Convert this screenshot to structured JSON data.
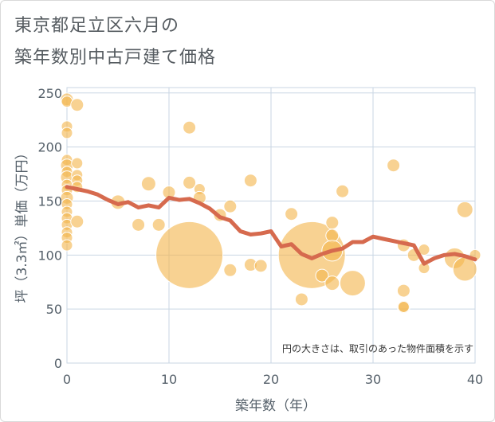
{
  "header": {
    "title_line1": "東京都足立区六月の",
    "title_line2": "築年数別中古戸建て価格"
  },
  "chart_data": {
    "type": "scatter",
    "title": "東京都足立区六月の築年数別中古戸建て価格",
    "xlabel": "築年数（年）",
    "ylabel": "坪（3.3㎡）単価（万円）",
    "xlim": [
      0,
      40
    ],
    "ylim": [
      0,
      255
    ],
    "xticks": [
      0,
      10,
      20,
      30,
      40
    ],
    "yticks": [
      0,
      50,
      100,
      150,
      200,
      250
    ],
    "note": "円の大きさは、取引のあった物件面積を示す",
    "colors": {
      "bubble": "#f3b64f",
      "trend": "#d66a4e",
      "grid": "#c9d6e3"
    },
    "bubbles": [
      {
        "x": 0,
        "y": 244,
        "s": 8
      },
      {
        "x": 0,
        "y": 242,
        "s": 7
      },
      {
        "x": 0,
        "y": 219,
        "s": 7
      },
      {
        "x": 0,
        "y": 213,
        "s": 7
      },
      {
        "x": 0,
        "y": 188,
        "s": 7
      },
      {
        "x": 0,
        "y": 183,
        "s": 8
      },
      {
        "x": 0,
        "y": 177,
        "s": 7
      },
      {
        "x": 0,
        "y": 172,
        "s": 8
      },
      {
        "x": 0,
        "y": 165,
        "s": 7
      },
      {
        "x": 0,
        "y": 160,
        "s": 7
      },
      {
        "x": 0,
        "y": 153,
        "s": 8
      },
      {
        "x": 0,
        "y": 147,
        "s": 7
      },
      {
        "x": 0,
        "y": 140,
        "s": 7
      },
      {
        "x": 0,
        "y": 134,
        "s": 7
      },
      {
        "x": 0,
        "y": 128,
        "s": 7
      },
      {
        "x": 0,
        "y": 121,
        "s": 7
      },
      {
        "x": 0,
        "y": 116,
        "s": 7
      },
      {
        "x": 0,
        "y": 109,
        "s": 7
      },
      {
        "x": 1,
        "y": 239,
        "s": 8
      },
      {
        "x": 1,
        "y": 185,
        "s": 7
      },
      {
        "x": 1,
        "y": 174,
        "s": 7
      },
      {
        "x": 1,
        "y": 169,
        "s": 7
      },
      {
        "x": 1,
        "y": 163,
        "s": 7
      },
      {
        "x": 1,
        "y": 131,
        "s": 8
      },
      {
        "x": 5,
        "y": 149,
        "s": 9
      },
      {
        "x": 7,
        "y": 128,
        "s": 8
      },
      {
        "x": 8,
        "y": 166,
        "s": 9
      },
      {
        "x": 9,
        "y": 128,
        "s": 8
      },
      {
        "x": 10,
        "y": 158,
        "s": 8
      },
      {
        "x": 12,
        "y": 218,
        "s": 8
      },
      {
        "x": 12,
        "y": 167,
        "s": 8
      },
      {
        "x": 12,
        "y": 100,
        "s": 42
      },
      {
        "x": 13,
        "y": 161,
        "s": 7
      },
      {
        "x": 13,
        "y": 153,
        "s": 8
      },
      {
        "x": 15,
        "y": 137,
        "s": 8
      },
      {
        "x": 16,
        "y": 145,
        "s": 8
      },
      {
        "x": 16,
        "y": 86,
        "s": 8
      },
      {
        "x": 18,
        "y": 169,
        "s": 8
      },
      {
        "x": 18,
        "y": 91,
        "s": 8
      },
      {
        "x": 19,
        "y": 90,
        "s": 8
      },
      {
        "x": 22,
        "y": 138,
        "s": 8
      },
      {
        "x": 23,
        "y": 59,
        "s": 8
      },
      {
        "x": 24,
        "y": 100,
        "s": 42
      },
      {
        "x": 25,
        "y": 81,
        "s": 8
      },
      {
        "x": 26,
        "y": 130,
        "s": 8
      },
      {
        "x": 26,
        "y": 118,
        "s": 8
      },
      {
        "x": 26,
        "y": 104,
        "s": 13
      },
      {
        "x": 26,
        "y": 74,
        "s": 9
      },
      {
        "x": 27,
        "y": 159,
        "s": 8
      },
      {
        "x": 28,
        "y": 74,
        "s": 16
      },
      {
        "x": 32,
        "y": 183,
        "s": 8
      },
      {
        "x": 33,
        "y": 109,
        "s": 8
      },
      {
        "x": 33,
        "y": 67,
        "s": 8
      },
      {
        "x": 33,
        "y": 52,
        "s": 8
      },
      {
        "x": 33,
        "y": 52,
        "s": 7
      },
      {
        "x": 34,
        "y": 100,
        "s": 8
      },
      {
        "x": 35,
        "y": 105,
        "s": 7
      },
      {
        "x": 35,
        "y": 88,
        "s": 7
      },
      {
        "x": 38,
        "y": 97,
        "s": 13
      },
      {
        "x": 39,
        "y": 142,
        "s": 10
      },
      {
        "x": 39,
        "y": 87,
        "s": 15
      },
      {
        "x": 40,
        "y": 100,
        "s": 7
      }
    ],
    "trend": {
      "x": [
        0,
        1,
        2,
        3,
        4,
        5,
        6,
        7,
        8,
        9,
        10,
        11,
        12,
        13,
        14,
        15,
        16,
        17,
        18,
        19,
        20,
        21,
        22,
        23,
        24,
        25,
        26,
        27,
        28,
        29,
        30,
        31,
        32,
        33,
        34,
        35,
        36,
        37,
        38,
        39,
        40
      ],
      "y": [
        163,
        161,
        159,
        156,
        151,
        147,
        149,
        144,
        146,
        144,
        153,
        151,
        152,
        148,
        143,
        135,
        132,
        122,
        119,
        120,
        122,
        108,
        110,
        101,
        97,
        101,
        104,
        106,
        112,
        112,
        117,
        115,
        113,
        111,
        109,
        92,
        97,
        100,
        101,
        99,
        96
      ]
    }
  }
}
